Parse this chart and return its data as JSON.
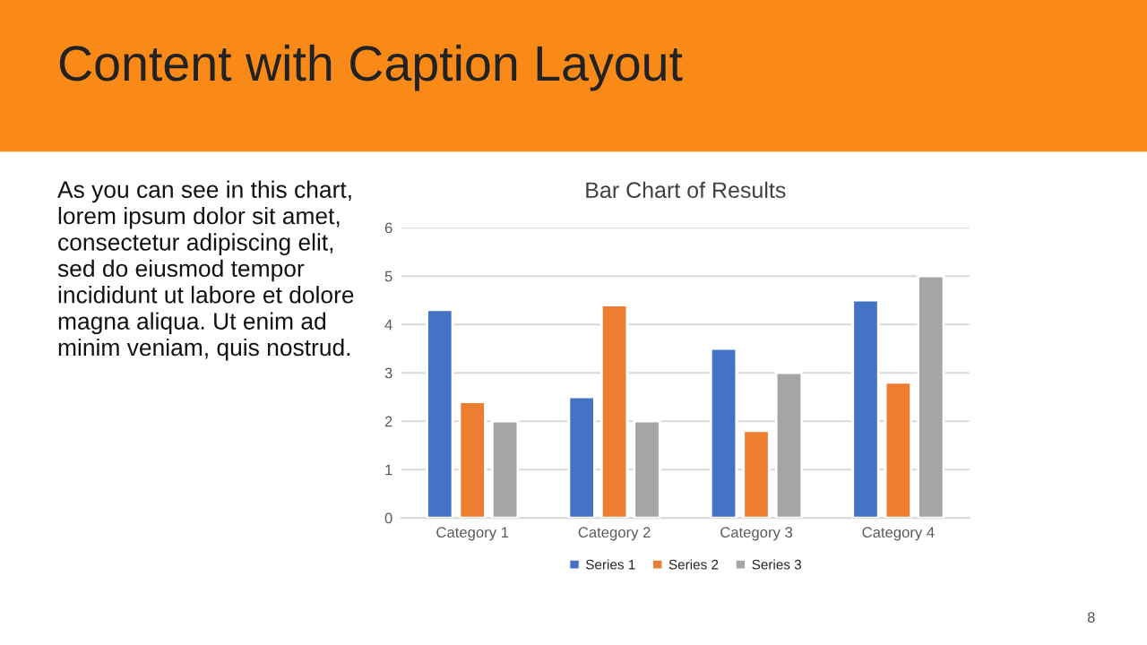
{
  "chart_data": {
    "type": "bar",
    "title": "Bar Chart of Results",
    "categories": [
      "Category 1",
      "Category 2",
      "Category 3",
      "Category 4"
    ],
    "series": [
      {
        "name": "Series 1",
        "color": "#4472c4",
        "values": [
          4.3,
          2.5,
          3.5,
          4.5
        ]
      },
      {
        "name": "Series 2",
        "color": "#ed7d31",
        "values": [
          2.4,
          4.4,
          1.8,
          2.8
        ]
      },
      {
        "name": "Series 3",
        "color": "#a5a5a5",
        "values": [
          2,
          2,
          3,
          5
        ]
      }
    ],
    "ylim": [
      0,
      6
    ],
    "yticks": [
      0,
      1,
      2,
      3,
      4,
      5,
      6
    ],
    "grid": "y",
    "legend": "bottom",
    "annotations": [
      "Content with Caption Layout",
      "As you can see in this chart,\nlorem ipsum dolor sit amet,\nconsectetur adipiscing elit,\nsed do eiusmod tempor\nincididunt ut labore et dolore\nmagna aliqua. Ut enim ad\nminim veniam, quis nostrud.",
      "8"
    ]
  }
}
